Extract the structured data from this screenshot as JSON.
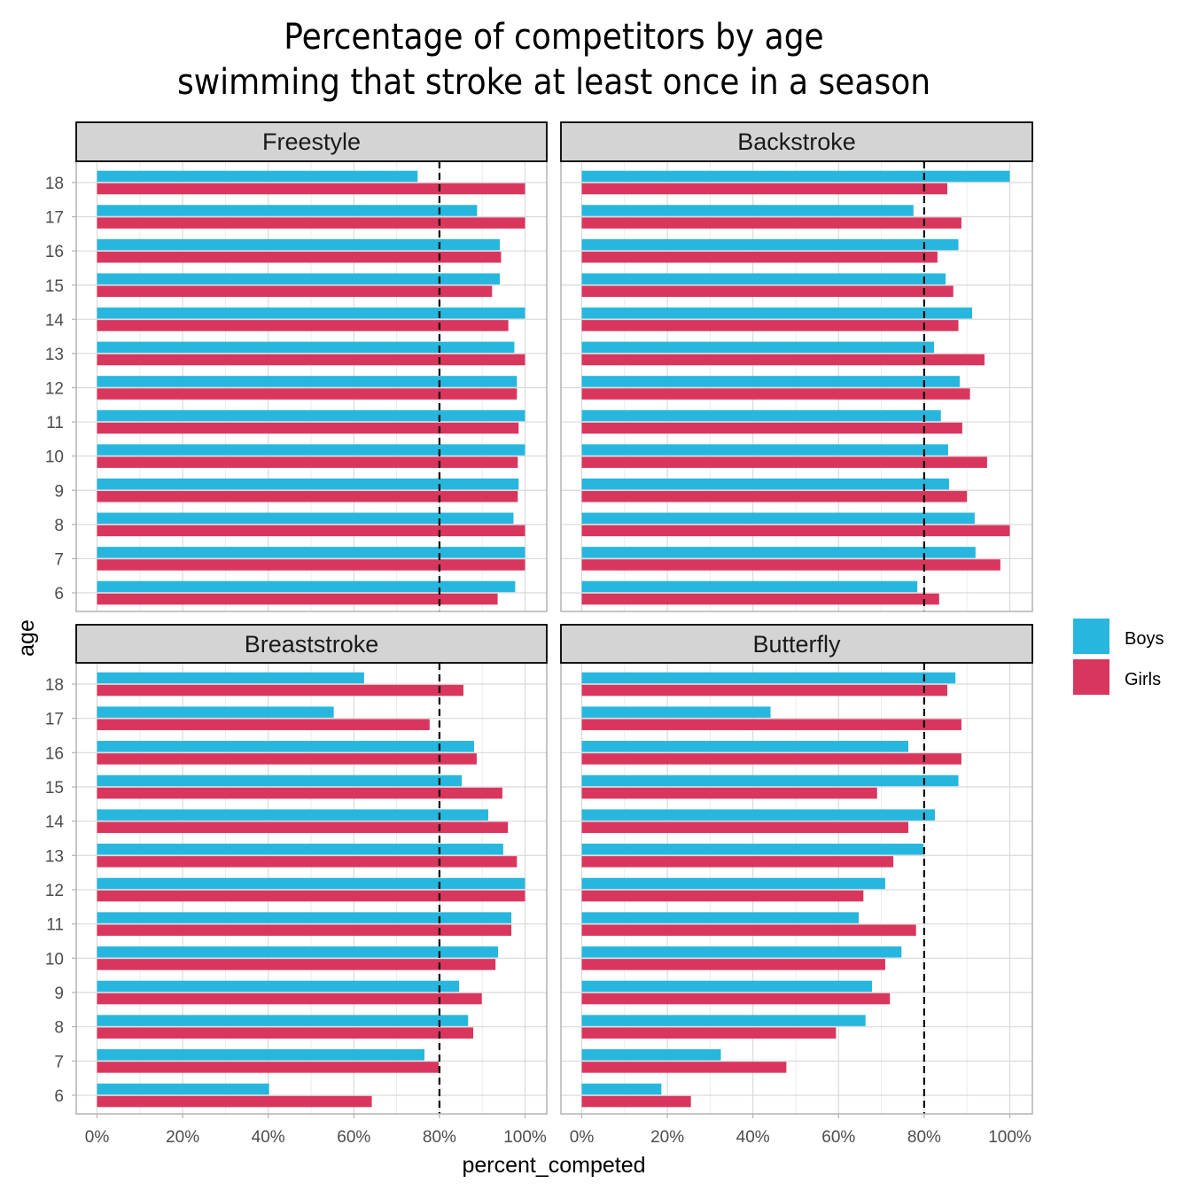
{
  "chart_data": {
    "type": "bar",
    "orientation": "horizontal",
    "title": "Percentage of competitors by age\nswimming that stroke at least once in a season",
    "title_lines": [
      "Percentage of competitors by age",
      "swimming that stroke at least once in a season"
    ],
    "xlabel": "percent_competed",
    "ylabel": "age",
    "xlim": [
      0,
      100
    ],
    "x_ticks": [
      "0%",
      "20%",
      "40%",
      "60%",
      "80%",
      "100%"
    ],
    "x_tick_values": [
      0,
      20,
      40,
      60,
      80,
      100
    ],
    "reference_line": {
      "value": 80,
      "style": "dashed",
      "color": "#000000"
    },
    "categories": [
      "6",
      "7",
      "8",
      "9",
      "10",
      "11",
      "12",
      "13",
      "14",
      "15",
      "16",
      "17",
      "18"
    ],
    "legend": {
      "position": "right",
      "entries": [
        {
          "name": "Boys",
          "color": "#27B7DE"
        },
        {
          "name": "Girls",
          "color": "#D9365E"
        }
      ]
    },
    "grid": true,
    "facets": [
      {
        "name": "Freestyle",
        "series": [
          {
            "name": "Boys",
            "values": [
              97.7,
              100,
              97.3,
              98.5,
              100,
              100,
              98.1,
              97.5,
              100,
              94.1,
              94.1,
              88.8,
              74.9
            ]
          },
          {
            "name": "Girls",
            "values": [
              93.6,
              100,
              100,
              98.3,
              98.3,
              98.5,
              98.1,
              100,
              96.1,
              92.3,
              94.4,
              100,
              100
            ]
          }
        ]
      },
      {
        "name": "Backstroke",
        "series": [
          {
            "name": "Boys",
            "values": [
              78.4,
              92.0,
              91.8,
              85.8,
              85.6,
              83.9,
              88.3,
              82.3,
              91.2,
              85.0,
              88.0,
              77.5,
              100
            ]
          },
          {
            "name": "Girls",
            "values": [
              83.5,
              97.8,
              100,
              90.0,
              94.7,
              88.9,
              90.7,
              94.1,
              88.0,
              86.8,
              83.1,
              88.7,
              85.4
            ]
          }
        ]
      },
      {
        "name": "Breaststroke",
        "series": [
          {
            "name": "Boys",
            "values": [
              40.2,
              76.5,
              86.7,
              84.6,
              93.7,
              96.8,
              100,
              94.9,
              91.4,
              85.2,
              88.1,
              55.3,
              62.4
            ]
          },
          {
            "name": "Girls",
            "values": [
              64.2,
              79.8,
              87.9,
              89.9,
              93.1,
              96.8,
              100,
              98.1,
              96.0,
              94.7,
              88.7,
              77.7,
              85.6
            ]
          }
        ]
      },
      {
        "name": "Butterfly",
        "series": [
          {
            "name": "Boys",
            "values": [
              18.6,
              32.5,
              66.3,
              67.8,
              74.7,
              64.7,
              70.9,
              79.8,
              82.5,
              88.0,
              76.3,
              44.1,
              87.3
            ]
          },
          {
            "name": "Girls",
            "values": [
              25.5,
              47.8,
              59.4,
              72.0,
              70.9,
              78.1,
              65.8,
              72.8,
              76.3,
              69.0,
              88.7,
              88.7,
              85.4
            ]
          }
        ]
      }
    ]
  }
}
